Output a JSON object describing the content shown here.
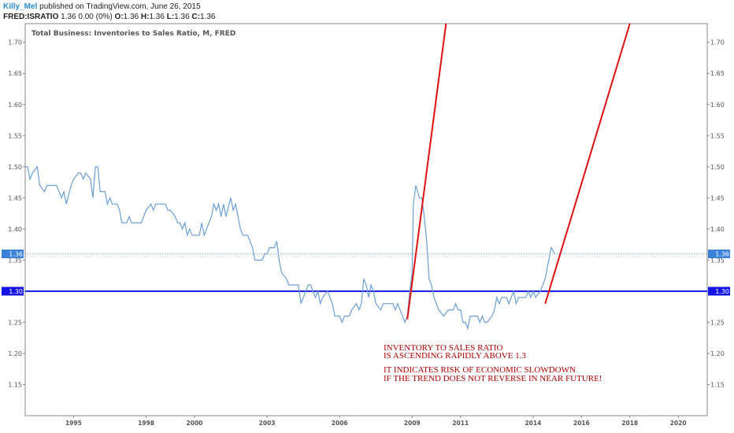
{
  "header": {
    "author": "Killy_Mel",
    "published": "published on TradingView.com, June 26, 2015",
    "symbol": "FRED:ISRATIO",
    "change": "1.36 0.00 (0%)",
    "o_label": "O:",
    "o_value": "1.36",
    "h_label": "H:",
    "h_value": "1.36",
    "l_label": "L:",
    "l_value": "1.36",
    "c_label": "C:",
    "c_value": "1.36"
  },
  "chart_data": {
    "type": "line",
    "title": "Total Business: Inventories to Sales Ratio, M, FRED",
    "x_range": [
      1993.0,
      2021.2
    ],
    "ylim": [
      1.1,
      1.73
    ],
    "y_ticks": [
      "1.15",
      "1.20",
      "1.25",
      "1.30",
      "1.35",
      "1.40",
      "1.45",
      "1.50",
      "1.55",
      "1.60",
      "1.65",
      "1.70"
    ],
    "x_ticks": [
      "1995",
      "1998",
      "2000",
      "2003",
      "2006",
      "2009",
      "2011",
      "2014",
      "2016",
      "2018",
      "2020"
    ],
    "x_tick_values": [
      1995,
      1998,
      2000,
      2003,
      2006,
      2009,
      2011,
      2014,
      2016,
      2018,
      2020
    ],
    "series": [
      {
        "color": "#6b9fd6",
        "points": [
          [
            1993.0,
            1.5
          ],
          [
            1993.1,
            1.5
          ],
          [
            1993.2,
            1.48
          ],
          [
            1993.3,
            1.49
          ],
          [
            1993.5,
            1.5
          ],
          [
            1993.6,
            1.47
          ],
          [
            1993.8,
            1.46
          ],
          [
            1993.9,
            1.47
          ],
          [
            1994.1,
            1.47
          ],
          [
            1994.3,
            1.47
          ],
          [
            1994.4,
            1.46
          ],
          [
            1994.5,
            1.45
          ],
          [
            1994.6,
            1.46
          ],
          [
            1994.7,
            1.44
          ],
          [
            1994.9,
            1.47
          ],
          [
            1995.0,
            1.48
          ],
          [
            1995.2,
            1.49
          ],
          [
            1995.3,
            1.49
          ],
          [
            1995.4,
            1.48
          ],
          [
            1995.5,
            1.49
          ],
          [
            1995.7,
            1.48
          ],
          [
            1995.8,
            1.45
          ],
          [
            1995.9,
            1.5
          ],
          [
            1996.0,
            1.5
          ],
          [
            1996.1,
            1.46
          ],
          [
            1996.3,
            1.46
          ],
          [
            1996.4,
            1.44
          ],
          [
            1996.5,
            1.45
          ],
          [
            1996.6,
            1.44
          ],
          [
            1996.8,
            1.44
          ],
          [
            1996.9,
            1.43
          ],
          [
            1997.0,
            1.41
          ],
          [
            1997.2,
            1.41
          ],
          [
            1997.3,
            1.42
          ],
          [
            1997.4,
            1.41
          ],
          [
            1997.6,
            1.41
          ],
          [
            1997.8,
            1.41
          ],
          [
            1997.9,
            1.42
          ],
          [
            1998.0,
            1.43
          ],
          [
            1998.2,
            1.44
          ],
          [
            1998.3,
            1.43
          ],
          [
            1998.4,
            1.44
          ],
          [
            1998.6,
            1.44
          ],
          [
            1998.8,
            1.44
          ],
          [
            1998.9,
            1.43
          ],
          [
            1999.0,
            1.43
          ],
          [
            1999.2,
            1.42
          ],
          [
            1999.3,
            1.41
          ],
          [
            1999.4,
            1.41
          ],
          [
            1999.5,
            1.4
          ],
          [
            1999.6,
            1.41
          ],
          [
            1999.7,
            1.39
          ],
          [
            1999.8,
            1.4
          ],
          [
            1999.9,
            1.39
          ],
          [
            2000.0,
            1.39
          ],
          [
            2000.2,
            1.39
          ],
          [
            2000.3,
            1.41
          ],
          [
            2000.4,
            1.39
          ],
          [
            2000.5,
            1.4
          ],
          [
            2000.7,
            1.42
          ],
          [
            2000.8,
            1.44
          ],
          [
            2000.9,
            1.43
          ],
          [
            2001.0,
            1.44
          ],
          [
            2001.1,
            1.42
          ],
          [
            2001.2,
            1.44
          ],
          [
            2001.3,
            1.42
          ],
          [
            2001.5,
            1.45
          ],
          [
            2001.6,
            1.43
          ],
          [
            2001.7,
            1.44
          ],
          [
            2001.8,
            1.42
          ],
          [
            2001.9,
            1.4
          ],
          [
            2002.0,
            1.39
          ],
          [
            2002.2,
            1.39
          ],
          [
            2002.3,
            1.38
          ],
          [
            2002.4,
            1.37
          ],
          [
            2002.5,
            1.35
          ],
          [
            2002.8,
            1.35
          ],
          [
            2002.9,
            1.36
          ],
          [
            2003.0,
            1.36
          ],
          [
            2003.1,
            1.37
          ],
          [
            2003.3,
            1.37
          ],
          [
            2003.4,
            1.38
          ],
          [
            2003.5,
            1.35
          ],
          [
            2003.6,
            1.33
          ],
          [
            2003.8,
            1.32
          ],
          [
            2003.9,
            1.31
          ],
          [
            2004.0,
            1.31
          ],
          [
            2004.2,
            1.31
          ],
          [
            2004.3,
            1.31
          ],
          [
            2004.4,
            1.28
          ],
          [
            2004.5,
            1.29
          ],
          [
            2004.7,
            1.31
          ],
          [
            2004.8,
            1.31
          ],
          [
            2004.9,
            1.3
          ],
          [
            2005.0,
            1.29
          ],
          [
            2005.1,
            1.3
          ],
          [
            2005.2,
            1.28
          ],
          [
            2005.3,
            1.29
          ],
          [
            2005.5,
            1.3
          ],
          [
            2005.6,
            1.29
          ],
          [
            2005.7,
            1.28
          ],
          [
            2005.8,
            1.26
          ],
          [
            2005.9,
            1.26
          ],
          [
            2006.0,
            1.26
          ],
          [
            2006.1,
            1.25
          ],
          [
            2006.2,
            1.26
          ],
          [
            2006.4,
            1.26
          ],
          [
            2006.5,
            1.27
          ],
          [
            2006.7,
            1.28
          ],
          [
            2006.8,
            1.27
          ],
          [
            2006.9,
            1.28
          ],
          [
            2007.0,
            1.32
          ],
          [
            2007.1,
            1.31
          ],
          [
            2007.2,
            1.29
          ],
          [
            2007.3,
            1.31
          ],
          [
            2007.4,
            1.3
          ],
          [
            2007.5,
            1.28
          ],
          [
            2007.7,
            1.27
          ],
          [
            2007.8,
            1.28
          ],
          [
            2007.9,
            1.28
          ],
          [
            2008.0,
            1.28
          ],
          [
            2008.2,
            1.28
          ],
          [
            2008.3,
            1.27
          ],
          [
            2008.4,
            1.28
          ],
          [
            2008.5,
            1.27
          ],
          [
            2008.7,
            1.25
          ],
          [
            2008.8,
            1.26
          ],
          [
            2008.9,
            1.3
          ],
          [
            2009.0,
            1.33
          ],
          [
            2009.05,
            1.44
          ],
          [
            2009.15,
            1.47
          ],
          [
            2009.3,
            1.45
          ],
          [
            2009.4,
            1.45
          ],
          [
            2009.5,
            1.42
          ],
          [
            2009.6,
            1.38
          ],
          [
            2009.7,
            1.32
          ],
          [
            2009.8,
            1.31
          ],
          [
            2009.9,
            1.29
          ],
          [
            2010.0,
            1.28
          ],
          [
            2010.1,
            1.27
          ],
          [
            2010.3,
            1.26
          ],
          [
            2010.5,
            1.27
          ],
          [
            2010.6,
            1.27
          ],
          [
            2010.7,
            1.27
          ],
          [
            2010.8,
            1.28
          ],
          [
            2010.9,
            1.27
          ],
          [
            2011.0,
            1.27
          ],
          [
            2011.1,
            1.25
          ],
          [
            2011.2,
            1.25
          ],
          [
            2011.3,
            1.24
          ],
          [
            2011.4,
            1.26
          ],
          [
            2011.5,
            1.26
          ],
          [
            2011.7,
            1.26
          ],
          [
            2011.8,
            1.25
          ],
          [
            2011.9,
            1.26
          ],
          [
            2012.0,
            1.25
          ],
          [
            2012.1,
            1.25
          ],
          [
            2012.3,
            1.26
          ],
          [
            2012.4,
            1.27
          ],
          [
            2012.5,
            1.29
          ],
          [
            2012.6,
            1.28
          ],
          [
            2012.7,
            1.29
          ],
          [
            2012.9,
            1.29
          ],
          [
            2013.0,
            1.28
          ],
          [
            2013.1,
            1.29
          ],
          [
            2013.2,
            1.3
          ],
          [
            2013.3,
            1.28
          ],
          [
            2013.4,
            1.29
          ],
          [
            2013.6,
            1.29
          ],
          [
            2013.7,
            1.29
          ],
          [
            2013.8,
            1.3
          ],
          [
            2013.9,
            1.29
          ],
          [
            2014.0,
            1.3
          ],
          [
            2014.1,
            1.29
          ],
          [
            2014.3,
            1.3
          ],
          [
            2014.4,
            1.31
          ],
          [
            2014.5,
            1.32
          ],
          [
            2014.6,
            1.34
          ],
          [
            2014.75,
            1.37
          ],
          [
            2014.9,
            1.36
          ]
        ]
      }
    ],
    "reference_lines": [
      {
        "value": 1.3,
        "label": "1.30",
        "color": "#1414e6",
        "style": "solid"
      },
      {
        "value": 1.36,
        "label": "1.36",
        "color": "#3a82d8",
        "style": "dotted"
      }
    ],
    "trend_lines": [
      {
        "color": "#e01010",
        "from": [
          2008.8,
          1.255
        ],
        "to": [
          2010.4,
          1.73
        ]
      },
      {
        "color": "#e01010",
        "from": [
          2014.5,
          1.28
        ],
        "to": [
          2018.0,
          1.73
        ]
      }
    ],
    "annotation": [
      "INVENTORY TO SALES RATIO",
      "IS ASCENDING RAPIDLY ABOVE 1.3",
      "IT INDICATES RISK OF ECONOMIC SLOWDOWN",
      "IF THE TREND DOES NOT REVERSE IN NEAR FUTURE!"
    ],
    "colors": {
      "axis": "#777777",
      "grid": "none"
    }
  }
}
